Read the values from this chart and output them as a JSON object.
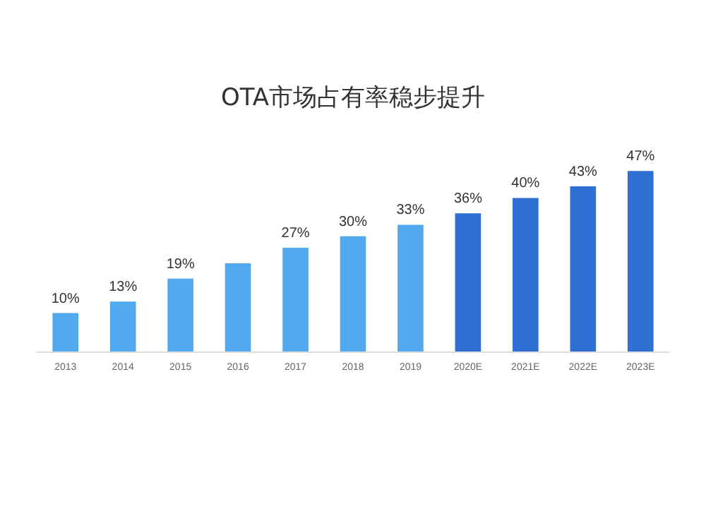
{
  "chart_data": {
    "type": "bar",
    "title": "OTA市场占有率稳步提升",
    "categories": [
      "2013",
      "2014",
      "2015",
      "2016",
      "2017",
      "2018",
      "2019",
      "2020E",
      "2021E",
      "2022E",
      "2023E"
    ],
    "values": [
      10,
      13,
      19,
      23,
      27,
      30,
      33,
      36,
      40,
      43,
      47
    ],
    "value_labels": [
      "10%",
      "13%",
      "19%",
      null,
      "27%",
      "30%",
      "33%",
      "36%",
      "40%",
      "43%",
      "47%"
    ],
    "colors": [
      "#52a9ee",
      "#52a9ee",
      "#52a9ee",
      "#52a9ee",
      "#52a9ee",
      "#52a9ee",
      "#52a9ee",
      "#2f6fd2",
      "#2f6fd2",
      "#2f6fd2",
      "#2f6fd2"
    ],
    "tick_labels": "x"
  }
}
